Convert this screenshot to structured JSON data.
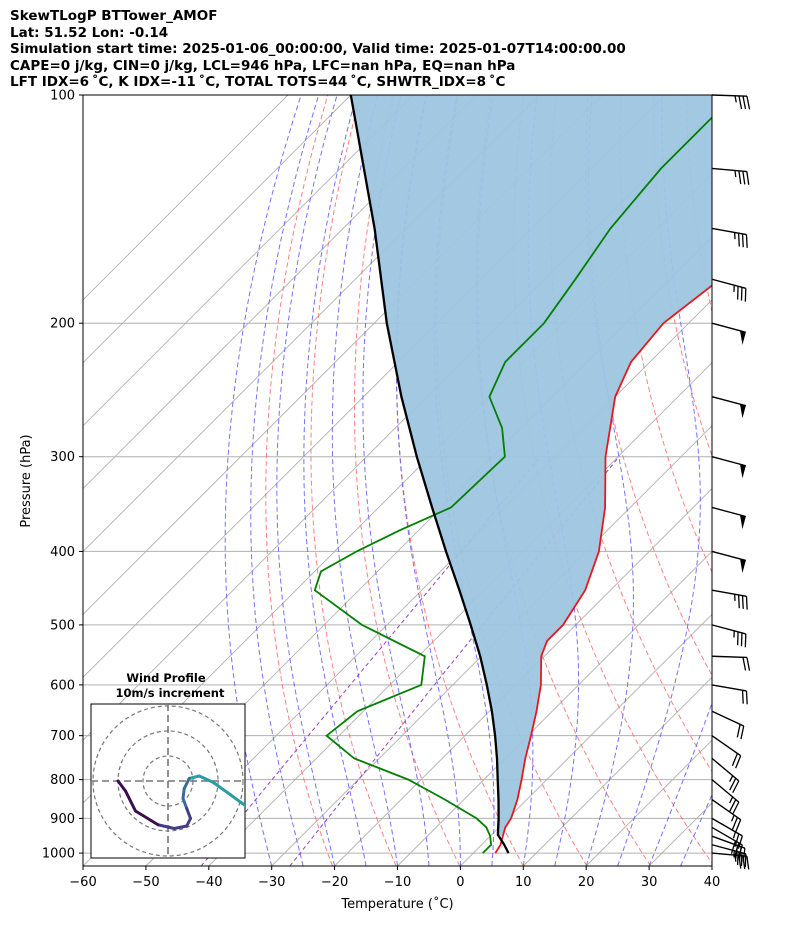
{
  "header": {
    "line1": "SkewTLogP BTTower_AMOF",
    "line2": "Lat: 51.52   Lon: -0.14",
    "line3": "Simulation start time: 2025-01-06_00:00:00, Valid time: 2025-01-07T14:00:00.00",
    "line4": "CAPE=0 j/kg, CIN=0 j/kg, LCL=946 hPa, LFC=nan hPa, EQ=nan hPa",
    "line5": "LFT IDX=6 ˚C, K IDX=-11 ˚C, TOTAL TOTS=44 ˚C, SHWTR_IDX=8 ˚C"
  },
  "colors": {
    "temperature": "#e31a1c",
    "dewpoint": "#008000",
    "parcel": "#000000",
    "shade": "#9ec5df",
    "dry_adiabat": "#ff6b6b",
    "moist_adiabat": "#5a5aff",
    "mixing_ratio": "#9b3fc1",
    "isotherm": "#b0b0b0",
    "hodograph": [
      "#3b0f4f",
      "#433d84",
      "#3a6a9a",
      "#2b9ba4"
    ]
  },
  "chart_data": {
    "type": "line",
    "title": "",
    "xlabel": "Temperature (˚C)",
    "ylabel": "Pressure (hPa)",
    "xlim": [
      -60,
      40
    ],
    "ylim_hpa": [
      1040,
      100
    ],
    "x_ticks": [
      "−60",
      "−50",
      "−40",
      "−30",
      "−20",
      "−10",
      "0",
      "10",
      "20",
      "30",
      "40"
    ],
    "y_ticks": [
      "100",
      "200",
      "300",
      "400",
      "500",
      "600",
      "700",
      "800",
      "900",
      "1000"
    ],
    "grid": true,
    "series": [
      {
        "key": "temperature",
        "pressure": [
          1000,
          975,
          950,
          925,
          900,
          850,
          800,
          750,
          700,
          650,
          600,
          550,
          525,
          500,
          450,
          400,
          350,
          300,
          250,
          225,
          200,
          175,
          150,
          125,
          100
        ],
        "temp": [
          3.5,
          3.0,
          2.0,
          1.0,
          0.5,
          -1.5,
          -4.0,
          -6.8,
          -9.5,
          -12.5,
          -16.0,
          -20.5,
          -22.0,
          -22.0,
          -24.0,
          -28.0,
          -34.0,
          -42.0,
          -50.0,
          -53.0,
          -54.0,
          -52.0,
          -49.0,
          -46.0,
          -47.0
        ]
      },
      {
        "key": "dewpoint",
        "pressure": [
          1000,
          975,
          950,
          925,
          900,
          850,
          800,
          750,
          700,
          650,
          600,
          550,
          500,
          450,
          425,
          400,
          375,
          350,
          300,
          275,
          250,
          225,
          200,
          175,
          150,
          125,
          100
        ],
        "temp": [
          1.5,
          1.5,
          0.0,
          -2.0,
          -5.0,
          -13.0,
          -22.0,
          -34.0,
          -42.0,
          -41.0,
          -35.0,
          -39.0,
          -54.0,
          -67.0,
          -69.0,
          -66.5,
          -63.0,
          -58.5,
          -58.0,
          -63.0,
          -70.0,
          -73.0,
          -73.0,
          -75.0,
          -77.5,
          -79.0,
          -79.0
        ]
      },
      {
        "key": "parcel",
        "pressure": [
          1000,
          975,
          946,
          900,
          850,
          800,
          750,
          700,
          650,
          600,
          550,
          500,
          450,
          400,
          350,
          300,
          250,
          200,
          150,
          100
        ],
        "temp": [
          5.6,
          3.6,
          1.0,
          -1.5,
          -4.5,
          -7.8,
          -11.3,
          -15.2,
          -19.6,
          -24.6,
          -30.2,
          -36.7,
          -44.0,
          -52.3,
          -61.5,
          -72.0,
          -84.0,
          -98.0,
          -115.0,
          -140.0
        ]
      }
    ],
    "wind_barbs": [
      {
        "pressure": 1000,
        "speed_kt": 35,
        "dir_deg": 275
      },
      {
        "pressure": 975,
        "speed_kt": 35,
        "dir_deg": 285
      },
      {
        "pressure": 950,
        "speed_kt": 30,
        "dir_deg": 290
      },
      {
        "pressure": 925,
        "speed_kt": 30,
        "dir_deg": 300
      },
      {
        "pressure": 900,
        "speed_kt": 25,
        "dir_deg": 300
      },
      {
        "pressure": 850,
        "speed_kt": 25,
        "dir_deg": 305
      },
      {
        "pressure": 800,
        "speed_kt": 25,
        "dir_deg": 310
      },
      {
        "pressure": 750,
        "speed_kt": 25,
        "dir_deg": 310
      },
      {
        "pressure": 700,
        "speed_kt": 20,
        "dir_deg": 305
      },
      {
        "pressure": 650,
        "speed_kt": 20,
        "dir_deg": 295
      },
      {
        "pressure": 600,
        "speed_kt": 20,
        "dir_deg": 280
      },
      {
        "pressure": 550,
        "speed_kt": 20,
        "dir_deg": 272
      },
      {
        "pressure": 500,
        "speed_kt": 35,
        "dir_deg": 285
      },
      {
        "pressure": 450,
        "speed_kt": 35,
        "dir_deg": 280
      },
      {
        "pressure": 400,
        "speed_kt": 50,
        "dir_deg": 285
      },
      {
        "pressure": 350,
        "speed_kt": 50,
        "dir_deg": 285
      },
      {
        "pressure": 300,
        "speed_kt": 50,
        "dir_deg": 285
      },
      {
        "pressure": 250,
        "speed_kt": 50,
        "dir_deg": 285
      },
      {
        "pressure": 200,
        "speed_kt": 50,
        "dir_deg": 285
      },
      {
        "pressure": 175,
        "speed_kt": 35,
        "dir_deg": 285
      },
      {
        "pressure": 150,
        "speed_kt": 35,
        "dir_deg": 280
      },
      {
        "pressure": 125,
        "speed_kt": 35,
        "dir_deg": 275
      },
      {
        "pressure": 100,
        "speed_kt": 35,
        "dir_deg": 272
      }
    ],
    "hodograph": {
      "title_line1": "Wind Profile",
      "title_line2": "10m/s increment",
      "u": [
        6.5,
        5.0,
        3.6,
        2.5,
        1.7,
        1.3,
        1.2,
        1.5,
        1.8,
        1.5,
        0.5,
        -0.8,
        -2.6,
        -3.4,
        -4.0
      ],
      "v": [
        -2.2,
        -1.1,
        -0.1,
        0.4,
        0.2,
        -0.6,
        -1.4,
        -2.2,
        -3.0,
        -3.6,
        -3.8,
        -3.5,
        -2.4,
        -0.8,
        0.0
      ]
    }
  }
}
